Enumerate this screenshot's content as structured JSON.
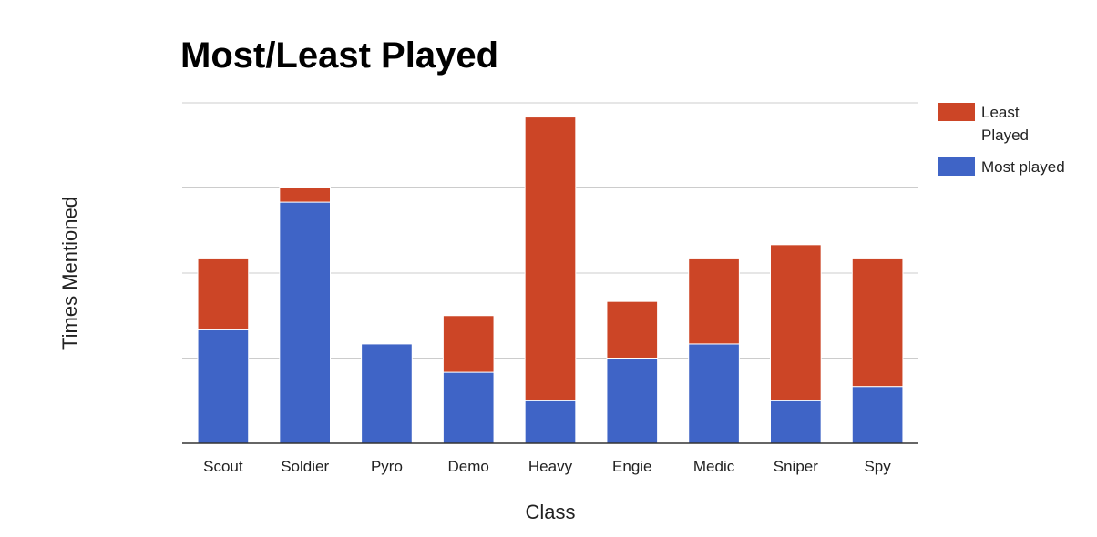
{
  "chart_data": {
    "type": "bar",
    "stacked": true,
    "title": "Most/Least Played",
    "xlabel": "Class",
    "ylabel": "Times Mentioned",
    "categories": [
      "Scout",
      "Soldier",
      "Pyro",
      "Demo",
      "Heavy",
      "Engie",
      "Medic",
      "Sniper",
      "Spy"
    ],
    "series": [
      {
        "name": "Most played",
        "color": "#3f64c6",
        "values": [
          8,
          17,
          7,
          5,
          3,
          6,
          7,
          3,
          4
        ]
      },
      {
        "name": "Least Played",
        "color": "#cc4526",
        "values": [
          5,
          1,
          0,
          4,
          20,
          4,
          6,
          11,
          9
        ]
      }
    ],
    "ylim": [
      0,
      24
    ],
    "gridlines": [
      0,
      6,
      12,
      18,
      24
    ],
    "grid": true,
    "legend": {
      "position": "right",
      "entries": [
        {
          "label_lines": [
            "Least",
            "Played"
          ],
          "color": "#cc4526"
        },
        {
          "label_lines": [
            "Most played"
          ],
          "color": "#3f64c6"
        }
      ]
    }
  }
}
